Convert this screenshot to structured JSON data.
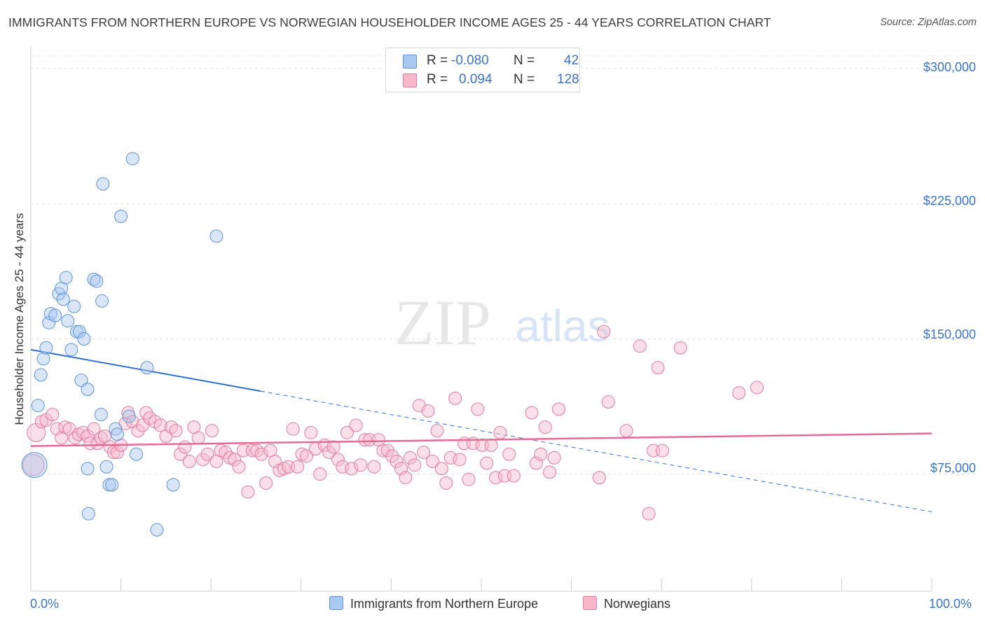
{
  "title": "IMMIGRANTS FROM NORTHERN EUROPE VS NORWEGIAN HOUSEHOLDER INCOME AGES 25 - 44 YEARS CORRELATION CHART",
  "source": "Source: ZipAtlas.com",
  "watermark": {
    "zip": "ZIP",
    "atlas": "atlas"
  },
  "legend": {
    "r_label": "R =",
    "n_label": "N =",
    "rows": [
      {
        "r": "-0.080",
        "n": "42",
        "color": "#a9c8f0"
      },
      {
        "r": "0.094",
        "n": "128",
        "color": "#f7b8cc"
      }
    ]
  },
  "bottom_legend": [
    "Immigrants from Northern Europe",
    "Norwegians"
  ],
  "colors": {
    "blue_fill": "#a9c8f0",
    "blue_stroke": "#5d92d6",
    "blue_line": "#2f6fd0",
    "pink_fill": "#f7b8cc",
    "pink_stroke": "#e27a9c",
    "pink_line": "#e56a95",
    "axis_text": "#3b74c5"
  },
  "chart_data": {
    "type": "scatter",
    "title": "IMMIGRANTS FROM NORTHERN EUROPE VS NORWEGIAN HOUSEHOLDER INCOME AGES 25 - 44 YEARS CORRELATION CHART",
    "xlabel": "",
    "ylabel": "Householder Income Ages 25 - 44 years",
    "x_tick_labels": [
      "0.0%",
      "100.0%"
    ],
    "y_tick_labels": [
      "$75,000",
      "$150,000",
      "$225,000",
      "$300,000"
    ],
    "y_ticks": [
      75000,
      150000,
      225000,
      300000
    ],
    "xlim": [
      0,
      100
    ],
    "ylim": [
      10000,
      307000
    ],
    "grid": true,
    "legend_position": "top-center",
    "series": [
      {
        "name": "Immigrants from Northern Europe",
        "color": "#a9c8f0",
        "trend": {
          "x": [
            0,
            25.5
          ],
          "y": [
            144000,
            121000
          ],
          "dashed_to": [
            100,
            54000
          ]
        },
        "points": [
          [
            0.4,
            80000,
            18
          ],
          [
            0.8,
            113000,
            9
          ],
          [
            1.1,
            130000,
            9
          ],
          [
            1.4,
            139000,
            9
          ],
          [
            1.7,
            145000,
            9
          ],
          [
            2.0,
            159000,
            9
          ],
          [
            2.2,
            164000,
            9
          ],
          [
            2.7,
            163000,
            9
          ],
          [
            3.1,
            175000,
            9
          ],
          [
            3.4,
            178000,
            9
          ],
          [
            3.6,
            172000,
            9
          ],
          [
            3.9,
            184000,
            9
          ],
          [
            4.1,
            160000,
            9
          ],
          [
            4.5,
            144000,
            9
          ],
          [
            4.8,
            168000,
            9
          ],
          [
            5.1,
            154000,
            9
          ],
          [
            5.4,
            154000,
            9
          ],
          [
            5.6,
            127000,
            9
          ],
          [
            5.9,
            150000,
            9
          ],
          [
            6.3,
            122000,
            9
          ],
          [
            7.0,
            183000,
            9
          ],
          [
            7.3,
            182000,
            9
          ],
          [
            7.8,
            108000,
            9
          ],
          [
            7.9,
            171000,
            9
          ],
          [
            8.0,
            236000,
            9
          ],
          [
            8.4,
            79000,
            9
          ],
          [
            8.7,
            69000,
            9
          ],
          [
            9.0,
            69000,
            9
          ],
          [
            9.4,
            100000,
            9
          ],
          [
            9.6,
            97000,
            9
          ],
          [
            10.0,
            218000,
            9
          ],
          [
            10.9,
            107000,
            9
          ],
          [
            11.3,
            250000,
            9
          ],
          [
            11.7,
            86000,
            9
          ],
          [
            12.9,
            134000,
            9
          ],
          [
            14.0,
            44000,
            9
          ],
          [
            15.8,
            69000,
            9
          ],
          [
            20.6,
            207000,
            9
          ],
          [
            6.3,
            78000,
            9
          ],
          [
            6.4,
            53000,
            9
          ],
          [
            3.5,
            188000,
            0
          ],
          [
            5.0,
            173000,
            0
          ]
        ]
      },
      {
        "name": "Norwegians",
        "color": "#f7b8cc",
        "trend": {
          "x": [
            0,
            100
          ],
          "y": [
            90500,
            97500
          ]
        },
        "points": [
          [
            0.3,
            80000,
            15
          ],
          [
            0.6,
            98000,
            13
          ],
          [
            1.2,
            104000,
            9
          ],
          [
            1.7,
            105000,
            9
          ],
          [
            2.4,
            108000,
            9
          ],
          [
            2.9,
            100000,
            9
          ],
          [
            3.4,
            95000,
            9
          ],
          [
            3.8,
            101000,
            9
          ],
          [
            4.3,
            100000,
            9
          ],
          [
            4.9,
            95000,
            9
          ],
          [
            5.3,
            97000,
            9
          ],
          [
            5.8,
            98000,
            9
          ],
          [
            6.3,
            96000,
            9
          ],
          [
            6.6,
            92000,
            9
          ],
          [
            7.0,
            100000,
            9
          ],
          [
            7.4,
            92000,
            9
          ],
          [
            7.8,
            95000,
            9
          ],
          [
            8.2,
            96000,
            9
          ],
          [
            8.8,
            90000,
            9
          ],
          [
            9.2,
            87000,
            9
          ],
          [
            9.6,
            87000,
            9
          ],
          [
            10.0,
            91000,
            9
          ],
          [
            10.5,
            103000,
            9
          ],
          [
            10.8,
            109000,
            9
          ],
          [
            11.3,
            104000,
            9
          ],
          [
            11.9,
            99000,
            9
          ],
          [
            12.4,
            102000,
            9
          ],
          [
            12.8,
            109000,
            9
          ],
          [
            13.2,
            106000,
            9
          ],
          [
            13.8,
            104000,
            9
          ],
          [
            14.4,
            102000,
            9
          ],
          [
            15.0,
            96000,
            9
          ],
          [
            15.6,
            101000,
            9
          ],
          [
            16.1,
            99000,
            9
          ],
          [
            16.6,
            86000,
            9
          ],
          [
            17.1,
            90000,
            9
          ],
          [
            17.6,
            82000,
            9
          ],
          [
            18.1,
            101000,
            9
          ],
          [
            18.6,
            95000,
            9
          ],
          [
            19.1,
            83000,
            9
          ],
          [
            19.6,
            86000,
            9
          ],
          [
            20.1,
            99000,
            9
          ],
          [
            20.6,
            82000,
            9
          ],
          [
            21.1,
            88000,
            9
          ],
          [
            21.6,
            87000,
            9
          ],
          [
            22.1,
            84000,
            9
          ],
          [
            22.6,
            83000,
            9
          ],
          [
            23.1,
            79000,
            9
          ],
          [
            23.6,
            88000,
            9
          ],
          [
            24.1,
            65000,
            9
          ],
          [
            24.6,
            88000,
            9
          ],
          [
            25.1,
            88000,
            9
          ],
          [
            25.6,
            86000,
            9
          ],
          [
            26.1,
            70000,
            9
          ],
          [
            26.6,
            88000,
            9
          ],
          [
            27.1,
            82000,
            9
          ],
          [
            27.6,
            77000,
            9
          ],
          [
            28.1,
            78000,
            9
          ],
          [
            28.6,
            79000,
            9
          ],
          [
            29.1,
            100000,
            9
          ],
          [
            29.6,
            79000,
            9
          ],
          [
            30.1,
            86000,
            9
          ],
          [
            30.6,
            85000,
            9
          ],
          [
            31.1,
            98000,
            9
          ],
          [
            31.6,
            89000,
            9
          ],
          [
            32.1,
            75000,
            9
          ],
          [
            32.6,
            91000,
            9
          ],
          [
            33.1,
            87000,
            9
          ],
          [
            33.6,
            90000,
            9
          ],
          [
            34.1,
            83000,
            9
          ],
          [
            34.6,
            79000,
            9
          ],
          [
            35.1,
            98000,
            9
          ],
          [
            35.6,
            78000,
            9
          ],
          [
            36.1,
            102000,
            9
          ],
          [
            36.6,
            80000,
            9
          ],
          [
            37.1,
            94000,
            9
          ],
          [
            37.6,
            94000,
            9
          ],
          [
            38.1,
            79000,
            9
          ],
          [
            38.6,
            94000,
            9
          ],
          [
            39.1,
            88000,
            9
          ],
          [
            39.6,
            88000,
            9
          ],
          [
            40.1,
            85000,
            9
          ],
          [
            40.6,
            82000,
            9
          ],
          [
            41.1,
            78000,
            9
          ],
          [
            41.6,
            73000,
            9
          ],
          [
            42.1,
            84000,
            9
          ],
          [
            42.6,
            80000,
            9
          ],
          [
            43.1,
            113000,
            9
          ],
          [
            43.6,
            87000,
            9
          ],
          [
            44.1,
            110000,
            9
          ],
          [
            44.6,
            82000,
            9
          ],
          [
            45.1,
            99000,
            9
          ],
          [
            45.6,
            78000,
            9
          ],
          [
            46.1,
            70000,
            9
          ],
          [
            46.6,
            84000,
            9
          ],
          [
            47.1,
            117000,
            9
          ],
          [
            47.6,
            83000,
            9
          ],
          [
            48.1,
            92000,
            9
          ],
          [
            48.6,
            72000,
            9
          ],
          [
            49.1,
            92000,
            9
          ],
          [
            49.6,
            111000,
            9
          ],
          [
            50.1,
            91000,
            9
          ],
          [
            50.6,
            81000,
            9
          ],
          [
            51.1,
            91000,
            9
          ],
          [
            51.6,
            73000,
            9
          ],
          [
            52.1,
            98000,
            9
          ],
          [
            52.6,
            74000,
            9
          ],
          [
            53.1,
            86000,
            9
          ],
          [
            53.6,
            74000,
            9
          ],
          [
            55.6,
            109000,
            9
          ],
          [
            56.1,
            81000,
            9
          ],
          [
            56.6,
            86000,
            9
          ],
          [
            57.1,
            101000,
            9
          ],
          [
            57.6,
            76000,
            9
          ],
          [
            58.1,
            84000,
            9
          ],
          [
            58.6,
            111000,
            9
          ],
          [
            63.1,
            73000,
            9
          ],
          [
            63.6,
            154000,
            9
          ],
          [
            64.1,
            115000,
            9
          ],
          [
            66.1,
            99000,
            9
          ],
          [
            67.6,
            146000,
            9
          ],
          [
            68.6,
            53000,
            9
          ],
          [
            69.1,
            88000,
            9
          ],
          [
            69.6,
            134000,
            9
          ],
          [
            70.1,
            88000,
            9
          ],
          [
            72.1,
            145000,
            9
          ],
          [
            78.6,
            120000,
            9
          ],
          [
            80.6,
            123000,
            9
          ]
        ]
      }
    ]
  }
}
